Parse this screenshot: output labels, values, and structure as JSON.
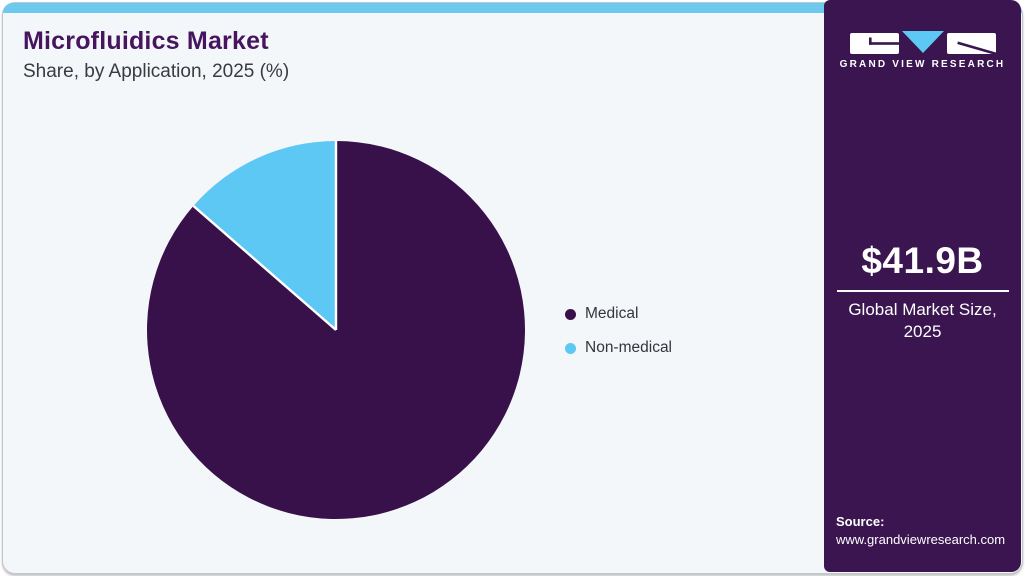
{
  "header": {
    "title": "Microfluidics Market",
    "subtitle": "Share, by Application, 2025 (%)"
  },
  "chart_data": {
    "type": "pie",
    "title": "Microfluidics Market Share, by Application, 2025 (%)",
    "categories": [
      "Medical",
      "Non-medical"
    ],
    "values": [
      86.4,
      13.6
    ],
    "unit": "%",
    "colors": [
      "#38114b",
      "#5dc8f3"
    ],
    "start_angle": "12 o'clock",
    "direction": "clockwise",
    "legend_position": "right",
    "data_labels_shown": false,
    "slice_separator_color": "#ffffff"
  },
  "legend": {
    "items": [
      {
        "label": "Medical",
        "color": "#38114b"
      },
      {
        "label": "Non-medical",
        "color": "#5dc8f3"
      }
    ]
  },
  "panel": {
    "logo_text": "GRAND VIEW RESEARCH",
    "market_size": "$41.9B",
    "market_label": "Global Market Size, 2025",
    "source_label": "Source:",
    "source_url": "www.grandviewresearch.com"
  },
  "colors": {
    "accent_cyan": "#6ec9ee",
    "panel_purple": "#3a1550",
    "pie_purple": "#38114b",
    "pie_blue": "#5dc8f3",
    "title_purple": "#46155e",
    "card_bg": "#f3f7fa",
    "card_border": "#c2c7cc",
    "text_dark": "#3a3a40"
  }
}
